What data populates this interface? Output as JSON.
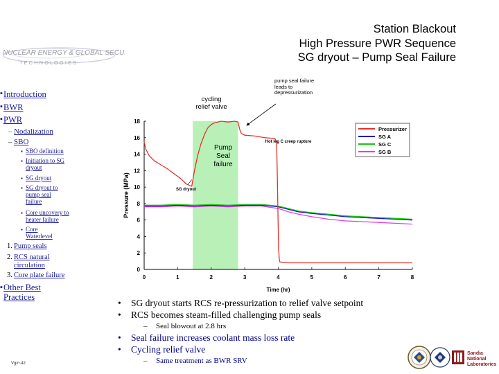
{
  "title": {
    "line1": "Station Blackout",
    "line2": "High Pressure PWR Sequence",
    "line3": "SG dryout – Pump Seal Failure"
  },
  "logo": {
    "text": "NUCLEAR ENERGY & GLOBAL SECURITY",
    "subtext": "T E C H N O L O G I E S"
  },
  "nav": {
    "introduction": "Introduction",
    "bwr": "BWR",
    "pwr": "PWR",
    "nodalization": "Nodalization",
    "sbo": "SBO",
    "sbo_definition": "SBO definition",
    "initiation": "Initiation to SG dryout",
    "sg_dryout": "SG dryout",
    "sg_dryout_to_seal": "SG dryout to pump seal failure",
    "core_uncovery": "Core uncovery to heater failure",
    "core_waterlevel": "Core Waterlevel",
    "item1_num": "1.",
    "item1": "Pump seals",
    "item2_num": "2.",
    "item2": "RCS natural circulation",
    "item3_num": "3.",
    "item3": "Core plate failure",
    "other": "Other Best Practices"
  },
  "annotations": {
    "cycling": "cycling relief valve",
    "pump_seal_failure": "Pump Seal failure",
    "pump_seal_leads": "pump seal failure leads to depressurization"
  },
  "chart_data": {
    "type": "line",
    "xlabel": "Time (hr)",
    "ylabel": "Pressure (MPa)",
    "xlim": [
      0,
      8
    ],
    "ylim": [
      0,
      18
    ],
    "xticks": [
      "0",
      "1",
      "2",
      "3",
      "4",
      "5",
      "6",
      "7",
      "8"
    ],
    "yticks": [
      "0",
      "2",
      "4",
      "6",
      "8",
      "10",
      "12",
      "14",
      "16",
      "18"
    ],
    "legend_position": "top-right",
    "grid": false,
    "shaded_region": [
      1.45,
      2.8
    ],
    "annotations": [
      {
        "text": "SG dryout",
        "x": 1.25,
        "y": 9.6
      },
      {
        "text": "Hot leg C creep rupture",
        "x": 4.3,
        "y": 15.4
      }
    ],
    "series": [
      {
        "name": "Pressurizer",
        "color": "#e8302a",
        "x": [
          0,
          0.05,
          0.15,
          0.3,
          0.5,
          0.7,
          0.9,
          1.1,
          1.25,
          1.35,
          1.42,
          1.5,
          1.6,
          1.7,
          1.8,
          1.9,
          2.0,
          2.1,
          2.2,
          2.3,
          2.5,
          2.7,
          2.8,
          2.85,
          2.9,
          3.0,
          3.3,
          3.6,
          3.9,
          3.95,
          3.97,
          3.99,
          4.01,
          4.03,
          4.05,
          4.3,
          5.0,
          6.0,
          7.0,
          8.0
        ],
        "y": [
          15.5,
          14.6,
          13.8,
          13.2,
          12.7,
          12.2,
          11.6,
          11.0,
          10.4,
          10.2,
          10.1,
          12.0,
          13.9,
          15.3,
          16.4,
          17.2,
          17.6,
          17.8,
          17.9,
          18.0,
          17.9,
          18.0,
          17.9,
          17.0,
          16.5,
          16.3,
          16.2,
          16.0,
          15.9,
          15.5,
          12.0,
          7.0,
          2.5,
          1.2,
          0.9,
          0.8,
          0.8,
          0.8,
          0.8,
          0.8
        ]
      },
      {
        "name": "SG A",
        "color": "#1515c8",
        "x": [
          0,
          0.5,
          1.0,
          1.5,
          2.0,
          2.5,
          3.0,
          3.5,
          4.0,
          4.3,
          4.6,
          5.0,
          5.5,
          6.0,
          6.5,
          7.0,
          7.5,
          8.0
        ],
        "y": [
          7.7,
          7.7,
          7.8,
          7.7,
          7.8,
          7.7,
          7.8,
          7.8,
          7.6,
          7.3,
          7.0,
          6.8,
          6.6,
          6.4,
          6.3,
          6.2,
          6.1,
          6.0
        ]
      },
      {
        "name": "SG C",
        "color": "#16c416",
        "x": [
          0,
          0.5,
          1.0,
          1.5,
          2.0,
          2.5,
          3.0,
          3.5,
          4.0,
          4.3,
          4.6,
          5.0,
          5.5,
          6.0,
          6.5,
          7.0,
          7.5,
          8.0
        ],
        "y": [
          7.8,
          7.8,
          7.9,
          7.8,
          7.9,
          7.8,
          7.9,
          7.9,
          7.7,
          7.4,
          7.1,
          6.9,
          6.7,
          6.5,
          6.4,
          6.3,
          6.2,
          6.1
        ]
      },
      {
        "name": "SG B",
        "color": "#e040e0",
        "x": [
          0,
          0.5,
          1.0,
          1.5,
          2.0,
          2.5,
          3.0,
          3.5,
          4.0,
          4.3,
          4.6,
          5.0,
          5.5,
          6.0,
          6.5,
          7.0,
          7.5,
          8.0
        ],
        "y": [
          7.6,
          7.6,
          7.7,
          7.6,
          7.7,
          7.6,
          7.7,
          7.7,
          7.4,
          7.0,
          6.7,
          6.4,
          6.1,
          5.9,
          5.8,
          5.7,
          5.6,
          5.5
        ]
      }
    ]
  },
  "bullets": {
    "b1": "SG dryout starts RCS re-pressurization to relief valve setpoint",
    "b2": "RCS becomes steam-filled challenging pump seals",
    "b2_sub": "Seal blowout at 2.8 hrs",
    "b3": "Seal failure increases coolant mass loss rate",
    "b4": "Cycling relief valve",
    "b4_sub": "Same treatment as BWR SRV",
    "dash": "–",
    "bullet": "•"
  },
  "footer": {
    "page": "Vg#~42",
    "sandia_line1": "Sandia",
    "sandia_line2": "National",
    "sandia_line3": "Laboratories"
  },
  "colors": {
    "nav_link": "#1a1a9a",
    "bullet_blue": "#00008b",
    "shade": "#b8f0b8",
    "sandia_red": "#8b1a1a"
  }
}
